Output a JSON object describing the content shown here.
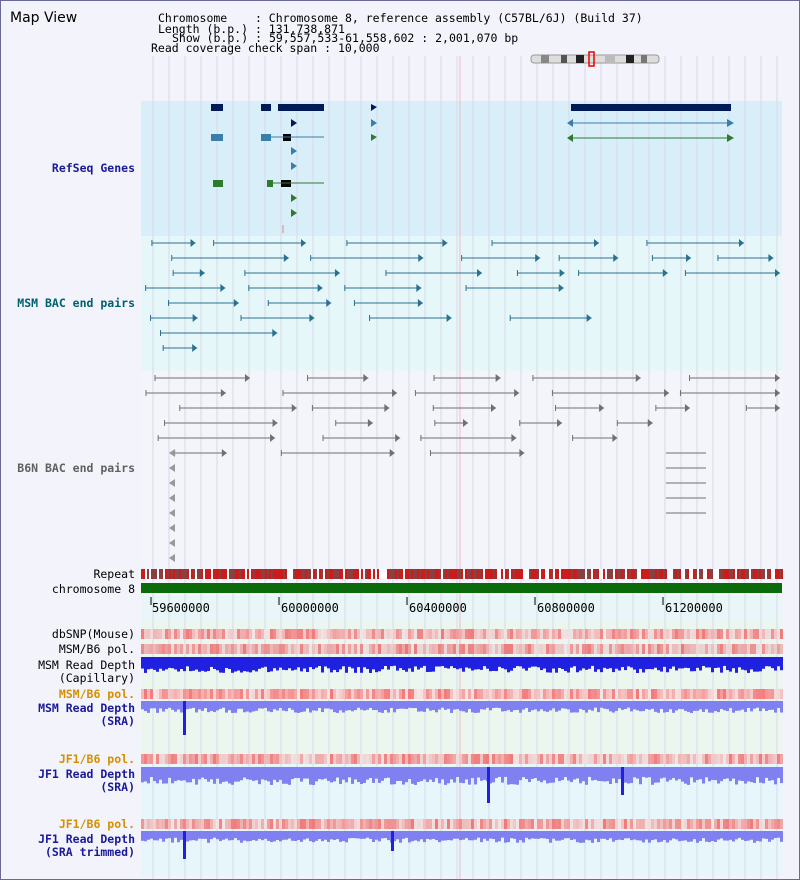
{
  "map": {
    "title": "Map View",
    "chromosome_label": "Chromosome",
    "chromosome_value": "Chromosome 8, reference assembly (C57BL/6J) (Build 37)",
    "length_label": "Length (b.p.)",
    "length_value": "131,738,871",
    "show_label": "Show (b.p.)",
    "show_value": "59,557,533-61,558,602 : 2,001,070 bp",
    "coverage_label": "Read coverage check span",
    "coverage_value": "10,000"
  },
  "tracks": {
    "refseq": "RefSeq Genes",
    "msm_bac": "MSM BAC end pairs",
    "b6n_bac": "B6N BAC end pairs",
    "repeat": "Repeat",
    "chromosome": "chromosome 8",
    "dbsnp": "dbSNP(Mouse)",
    "msm_b6_pol_1": "MSM/B6 pol.",
    "msm_depth_cap_1": "MSM Read Depth",
    "msm_depth_cap_2": "(Capillary)",
    "msm_b6_pol_2": "MSM/B6 pol.",
    "msm_depth_sra_1": "MSM Read Depth",
    "msm_depth_sra_2": "(SRA)",
    "jf1_pol_1": "JF1/B6 pol.",
    "jf1_depth_1": "JF1 Read Depth",
    "jf1_depth_2": "(SRA)",
    "jf1_pol_2": "JF1/B6 pol.",
    "jf1_trim_1": "JF1 Read Depth",
    "jf1_trim_2": "(SRA trimmed)"
  },
  "axis": {
    "ticks": [
      "59600000",
      "60000000",
      "60400000",
      "60800000",
      "61200000"
    ]
  },
  "colors": {
    "refseq_bg": "#d8effa",
    "msm_bg": "#e6f7fa",
    "gene_dark": "#001a55",
    "gene_mid": "#3a7faa",
    "gene_green": "#2f7a2f",
    "msm_line": "#2a7090",
    "b6n_line": "#707070",
    "repeat_red": "#cc1b1b",
    "chrom_green": "#0b6b0b",
    "pol_red": "#e04040",
    "depth_blue": "#2020e0",
    "depth_light": "#8080f0",
    "label_blue": "#1a1a99",
    "label_teal": "#006070",
    "label_orange": "#d49000"
  }
}
